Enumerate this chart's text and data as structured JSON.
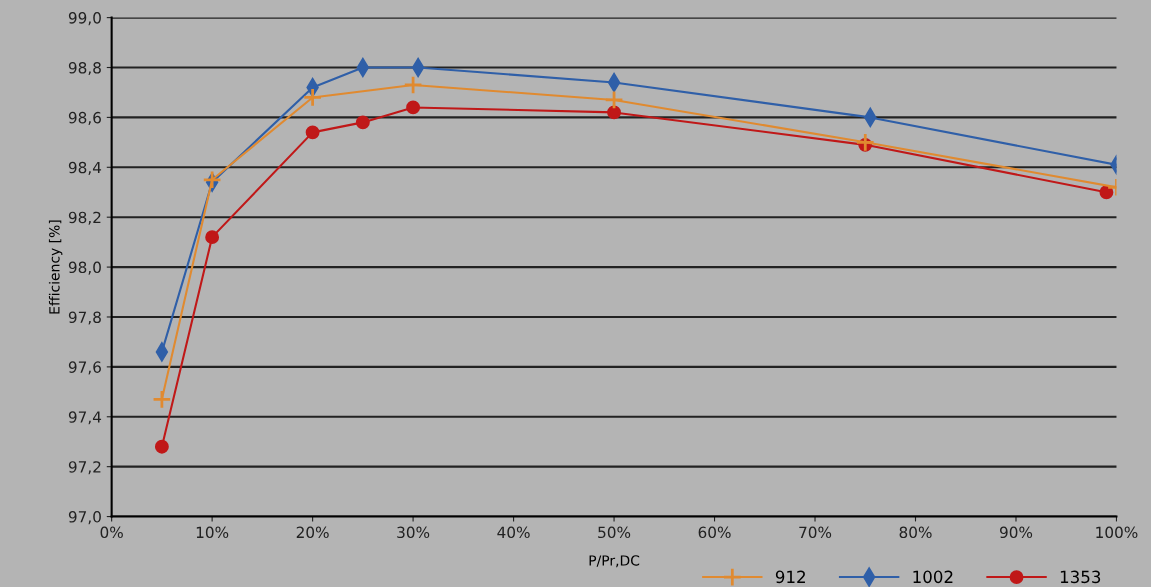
{
  "chart_data": {
    "type": "line",
    "xlabel": "P/Pr,DC",
    "ylabel": "Efficiency [%]",
    "xlim": [
      0,
      100
    ],
    "ylim": [
      97.0,
      99.0
    ],
    "xticks": [
      {
        "value": 0,
        "label": "0%"
      },
      {
        "value": 10,
        "label": "10%"
      },
      {
        "value": 20,
        "label": "20%"
      },
      {
        "value": 30,
        "label": "30%"
      },
      {
        "value": 40,
        "label": "40%"
      },
      {
        "value": 50,
        "label": "50%"
      },
      {
        "value": 60,
        "label": "60%"
      },
      {
        "value": 70,
        "label": "70%"
      },
      {
        "value": 80,
        "label": "80%"
      },
      {
        "value": 90,
        "label": "90%"
      },
      {
        "value": 100,
        "label": "100%"
      }
    ],
    "yticks": [
      {
        "value": 97.0,
        "label": "97,0"
      },
      {
        "value": 97.2,
        "label": "97,2"
      },
      {
        "value": 97.4,
        "label": "97,4"
      },
      {
        "value": 97.6,
        "label": "97,6"
      },
      {
        "value": 97.8,
        "label": "97,8"
      },
      {
        "value": 98.0,
        "label": "98,0"
      },
      {
        "value": 98.2,
        "label": "98,2"
      },
      {
        "value": 98.4,
        "label": "98,4"
      },
      {
        "value": 98.6,
        "label": "98,6"
      },
      {
        "value": 98.8,
        "label": "98,8"
      },
      {
        "value": 99.0,
        "label": "99,0"
      }
    ],
    "grid": "y",
    "legend": "bottom right",
    "series": [
      {
        "name": "912",
        "color": "#e08a30",
        "marker": "cross",
        "x": [
          5,
          10,
          20,
          30,
          50,
          75,
          100
        ],
        "values": [
          97.47,
          98.35,
          98.68,
          98.73,
          98.67,
          98.5,
          98.32
        ]
      },
      {
        "name": "1002",
        "color": "#2f5fa8",
        "marker": "diamond",
        "x": [
          5,
          10,
          20,
          25,
          30.5,
          50,
          75.5,
          100
        ],
        "values": [
          97.66,
          98.34,
          98.72,
          98.8,
          98.8,
          98.74,
          98.6,
          98.41
        ]
      },
      {
        "name": "1353",
        "color": "#c01818",
        "marker": "circle",
        "x": [
          5,
          10,
          20,
          25,
          30,
          50,
          75,
          99
        ],
        "values": [
          97.28,
          98.12,
          98.54,
          98.58,
          98.64,
          98.62,
          98.49,
          98.3
        ]
      }
    ]
  }
}
